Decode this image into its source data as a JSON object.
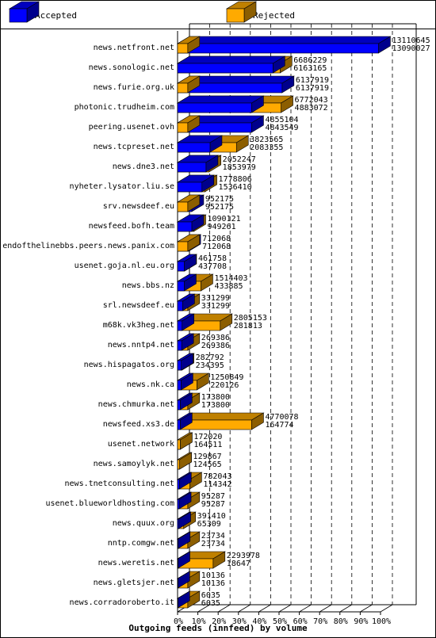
{
  "chart_data": {
    "type": "bar",
    "orientation": "horizontal",
    "title": "Outgoing feeds (innfeed) by volume",
    "series": [
      {
        "name": "Accepted",
        "color": "#0000ff"
      },
      {
        "name": "Rejected",
        "color": "#ffaa00"
      }
    ],
    "x_ticks": [
      "0%",
      "10%",
      "20%",
      "30%",
      "40%",
      "50%",
      "60%",
      "70%",
      "80%",
      "90%",
      "100%"
    ],
    "xlim": [
      0,
      100
    ],
    "rows": [
      {
        "label": "news.netfront.net",
        "accepted_pct": 99.0,
        "rejected_pct": 5.0,
        "text1": "13110645",
        "text2": "13090027"
      },
      {
        "label": "news.sonologic.net",
        "accepted_pct": 47.0,
        "rejected_pct": 50.5,
        "text1": "6686229",
        "text2": "6163165"
      },
      {
        "label": "news.furie.org.uk",
        "accepted_pct": 51.5,
        "rejected_pct": 5.0,
        "text1": "6137919",
        "text2": "6137919"
      },
      {
        "label": "photonic.trudheim.com",
        "accepted_pct": 36.5,
        "rejected_pct": 51.0,
        "text1": "6772043",
        "text2": "4883072"
      },
      {
        "label": "peering.usenet.ovh",
        "accepted_pct": 36.5,
        "rejected_pct": 5.0,
        "text1": "4855104",
        "text2": "4843549"
      },
      {
        "label": "news.tcpreset.net",
        "accepted_pct": 16.0,
        "rejected_pct": 29.0,
        "text1": "3823565",
        "text2": "2083355"
      },
      {
        "label": "news.dne3.net",
        "accepted_pct": 14.0,
        "rejected_pct": 15.5,
        "text1": "2052247",
        "text2": "1853979"
      },
      {
        "label": "nyheter.lysator.liu.se",
        "accepted_pct": 12.0,
        "rejected_pct": 13.5,
        "text1": "1778806",
        "text2": "1536410"
      },
      {
        "label": "srv.newsdeef.eu",
        "accepted_pct": 7.0,
        "rejected_pct": 5.0,
        "text1": "952175",
        "text2": "952175"
      },
      {
        "label": "newsfeed.bofh.team",
        "accepted_pct": 7.0,
        "rejected_pct": 8.0,
        "text1": "1090121",
        "text2": "949261"
      },
      {
        "label": "endofthelinebbs.peers.news.panix.com",
        "accepted_pct": 5.5,
        "rejected_pct": 5.0,
        "text1": "712068",
        "text2": "712068"
      },
      {
        "label": "usenet.goja.nl.eu.org",
        "accepted_pct": 3.3,
        "rejected_pct": 3.5,
        "text1": "461758",
        "text2": "437708"
      },
      {
        "label": "news.bbs.nz",
        "accepted_pct": 3.3,
        "rejected_pct": 11.5,
        "text1": "1514403",
        "text2": "433885"
      },
      {
        "label": "srl.newsdeef.eu",
        "accepted_pct": 2.5,
        "rejected_pct": 5.0,
        "text1": "331299",
        "text2": "331299"
      },
      {
        "label": "m68k.vk3heg.net",
        "accepted_pct": 2.2,
        "rejected_pct": 21.0,
        "text1": "2805153",
        "text2": "281813"
      },
      {
        "label": "news.nntp4.net",
        "accepted_pct": 2.0,
        "rejected_pct": 5.0,
        "text1": "269386",
        "text2": "269386"
      },
      {
        "label": "news.hispagatos.org",
        "accepted_pct": 1.8,
        "rejected_pct": 2.2,
        "text1": "282792",
        "text2": "234395"
      },
      {
        "label": "news.nk.ca",
        "accepted_pct": 1.7,
        "rejected_pct": 9.5,
        "text1": "1250849",
        "text2": "220126"
      },
      {
        "label": "news.chmurka.net",
        "accepted_pct": 1.3,
        "rejected_pct": 5.0,
        "text1": "173800",
        "text2": "173800"
      },
      {
        "label": "newsfeed.xs3.de",
        "accepted_pct": 1.3,
        "rejected_pct": 36.5,
        "text1": "4770078",
        "text2": "164774"
      },
      {
        "label": "usenet.network",
        "accepted_pct": 1.3,
        "rejected_pct": 1.3,
        "text1": "172020",
        "text2": "164511"
      },
      {
        "label": "news.samoylyk.net",
        "accepted_pct": 1.0,
        "rejected_pct": 1.0,
        "text1": "129867",
        "text2": "124565"
      },
      {
        "label": "news.tnetconsulting.net",
        "accepted_pct": 0.9,
        "rejected_pct": 6.0,
        "text1": "782043",
        "text2": "114342"
      },
      {
        "label": "usenet.blueworldhosting.com",
        "accepted_pct": 0.8,
        "rejected_pct": 5.0,
        "text1": "95287",
        "text2": "95287"
      },
      {
        "label": "news.quux.org",
        "accepted_pct": 0.6,
        "rejected_pct": 3.0,
        "text1": "391410",
        "text2": "65309"
      },
      {
        "label": "nntp.comgw.net",
        "accepted_pct": 0.3,
        "rejected_pct": 5.0,
        "text1": "23734",
        "text2": "23734"
      },
      {
        "label": "news.weretis.net",
        "accepted_pct": 0.2,
        "rejected_pct": 17.5,
        "text1": "2293978",
        "text2": "18647"
      },
      {
        "label": "news.gletsjer.net",
        "accepted_pct": 0.1,
        "rejected_pct": 5.0,
        "text1": "10136",
        "text2": "10136"
      },
      {
        "label": "news.corradoroberto.it",
        "accepted_pct": 0.1,
        "rejected_pct": 5.0,
        "text1": "6035",
        "text2": "6035"
      }
    ]
  }
}
